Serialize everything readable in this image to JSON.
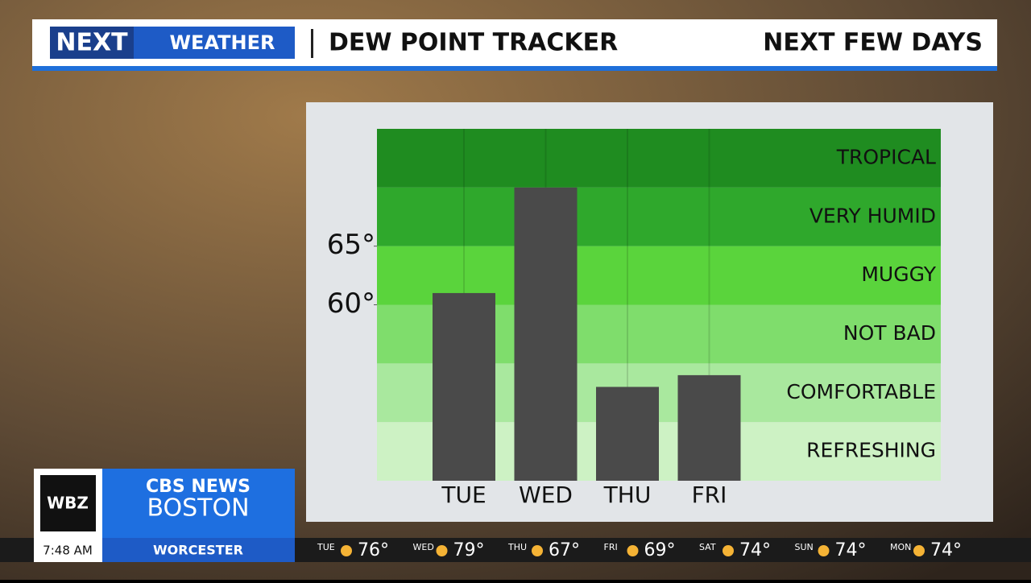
{
  "header": {
    "logo_left": "NEXT",
    "logo_right": "WEATHER",
    "title": "DEW POINT TRACKER",
    "subtitle": "NEXT FEW DAYS"
  },
  "chart_data": {
    "type": "bar",
    "categories": [
      "TUE",
      "WED",
      "THU",
      "FRI"
    ],
    "values": [
      61,
      70,
      53,
      54
    ],
    "color": "#4a4a4a",
    "ylim": [
      45,
      75
    ],
    "yticks": [
      {
        "value": 60,
        "label": "60°"
      },
      {
        "value": 65,
        "label": "65°"
      }
    ],
    "bands": [
      {
        "label": "REFRESHING",
        "color": "#cdf2c4"
      },
      {
        "label": "COMFORTABLE",
        "color": "#a9e89e"
      },
      {
        "label": "NOT BAD",
        "color": "#7fdd6c"
      },
      {
        "label": "MUGGY",
        "color": "#5ad43c"
      },
      {
        "label": "VERY HUMID",
        "color": "#2fa82c"
      },
      {
        "label": "TROPICAL",
        "color": "#1f8c20"
      }
    ]
  },
  "station": {
    "call": "WBZ",
    "network": "CBS NEWS",
    "city": "BOSTON"
  },
  "ticker": {
    "time": "7:48 AM",
    "location": "WORCESTER",
    "days": [
      {
        "day": "TUE",
        "temp": "76°"
      },
      {
        "day": "WED",
        "temp": "79°"
      },
      {
        "day": "THU",
        "temp": "67°"
      },
      {
        "day": "FRI",
        "temp": "69°"
      },
      {
        "day": "SAT",
        "temp": "74°"
      },
      {
        "day": "SUN",
        "temp": "74°"
      },
      {
        "day": "MON",
        "temp": "74°"
      }
    ]
  }
}
